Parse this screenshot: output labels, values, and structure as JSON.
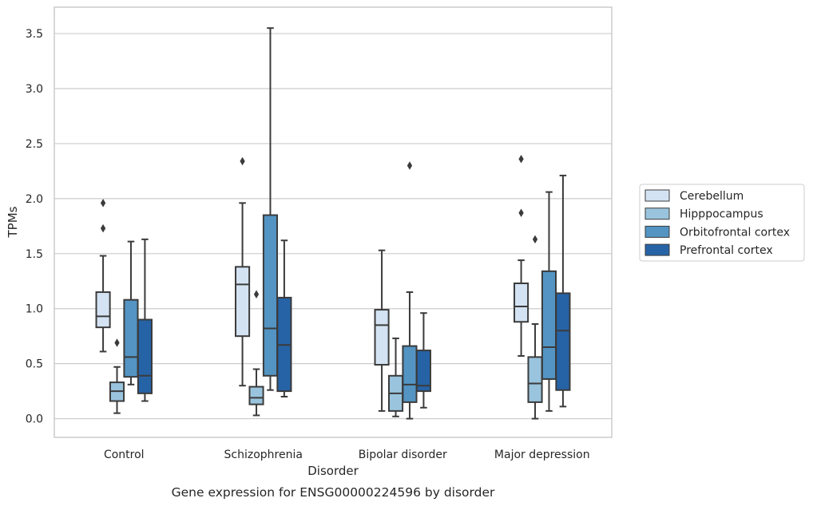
{
  "chart_data": {
    "type": "box",
    "categories": [
      "Control",
      "Schizophrenia",
      "Bipolar disorder",
      "Major depression"
    ],
    "xlabel": "Disorder",
    "ylabel": "TPMs",
    "caption": "Gene expression for ENSG00000224596 by disorder",
    "ylim": [
      -0.17,
      3.74
    ],
    "yticks": [
      "0.0",
      "0.5",
      "1.0",
      "1.5",
      "2.0",
      "2.5",
      "3.0",
      "3.5"
    ],
    "ytick_values": [
      0,
      0.5,
      1.0,
      1.5,
      2.0,
      2.5,
      3.0,
      3.5
    ],
    "grid": "horizontal",
    "legend_position": "right",
    "series": [
      {
        "name": "Cerebellum",
        "color": "#d4e3f3",
        "boxes": [
          {
            "whislo": 0.61,
            "q1": 0.83,
            "med": 0.93,
            "q3": 1.15,
            "whishi": 1.48,
            "fliers": [
              1.73,
              1.96
            ]
          },
          {
            "whislo": 0.3,
            "q1": 0.75,
            "med": 1.22,
            "q3": 1.38,
            "whishi": 1.96,
            "fliers": [
              2.34
            ]
          },
          {
            "whislo": 0.07,
            "q1": 0.49,
            "med": 0.85,
            "q3": 0.99,
            "whishi": 1.53,
            "fliers": []
          },
          {
            "whislo": 0.57,
            "q1": 0.88,
            "med": 1.02,
            "q3": 1.23,
            "whishi": 1.44,
            "fliers": [
              1.87,
              2.36
            ]
          }
        ]
      },
      {
        "name": "Hipppocampus",
        "color": "#9ac4dd",
        "boxes": [
          {
            "whislo": 0.05,
            "q1": 0.16,
            "med": 0.25,
            "q3": 0.33,
            "whishi": 0.47,
            "fliers": [
              0.69
            ]
          },
          {
            "whislo": 0.03,
            "q1": 0.13,
            "med": 0.19,
            "q3": 0.29,
            "whishi": 0.45,
            "fliers": [
              1.13
            ]
          },
          {
            "whislo": 0.02,
            "q1": 0.07,
            "med": 0.23,
            "q3": 0.39,
            "whishi": 0.73,
            "fliers": []
          },
          {
            "whislo": 0.0,
            "q1": 0.15,
            "med": 0.32,
            "q3": 0.56,
            "whishi": 0.86,
            "fliers": [
              1.63
            ]
          }
        ]
      },
      {
        "name": "Orbitofrontal cortex",
        "color": "#5394c3",
        "boxes": [
          {
            "whislo": 0.31,
            "q1": 0.38,
            "med": 0.56,
            "q3": 1.08,
            "whishi": 1.61,
            "fliers": []
          },
          {
            "whislo": 0.26,
            "q1": 0.39,
            "med": 0.82,
            "q3": 1.85,
            "whishi": 3.55,
            "fliers": []
          },
          {
            "whislo": 0.0,
            "q1": 0.15,
            "med": 0.31,
            "q3": 0.66,
            "whishi": 1.15,
            "fliers": [
              2.3
            ]
          },
          {
            "whislo": 0.07,
            "q1": 0.36,
            "med": 0.65,
            "q3": 1.34,
            "whishi": 2.06,
            "fliers": []
          }
        ]
      },
      {
        "name": "Prefrontal cortex",
        "color": "#2663a6",
        "boxes": [
          {
            "whislo": 0.16,
            "q1": 0.23,
            "med": 0.39,
            "q3": 0.9,
            "whishi": 1.63,
            "fliers": []
          },
          {
            "whislo": 0.2,
            "q1": 0.25,
            "med": 0.67,
            "q3": 1.1,
            "whishi": 1.62,
            "fliers": []
          },
          {
            "whislo": 0.1,
            "q1": 0.25,
            "med": 0.3,
            "q3": 0.62,
            "whishi": 0.96,
            "fliers": []
          },
          {
            "whislo": 0.11,
            "q1": 0.26,
            "med": 0.8,
            "q3": 1.14,
            "whishi": 2.21,
            "fliers": []
          }
        ]
      }
    ]
  }
}
